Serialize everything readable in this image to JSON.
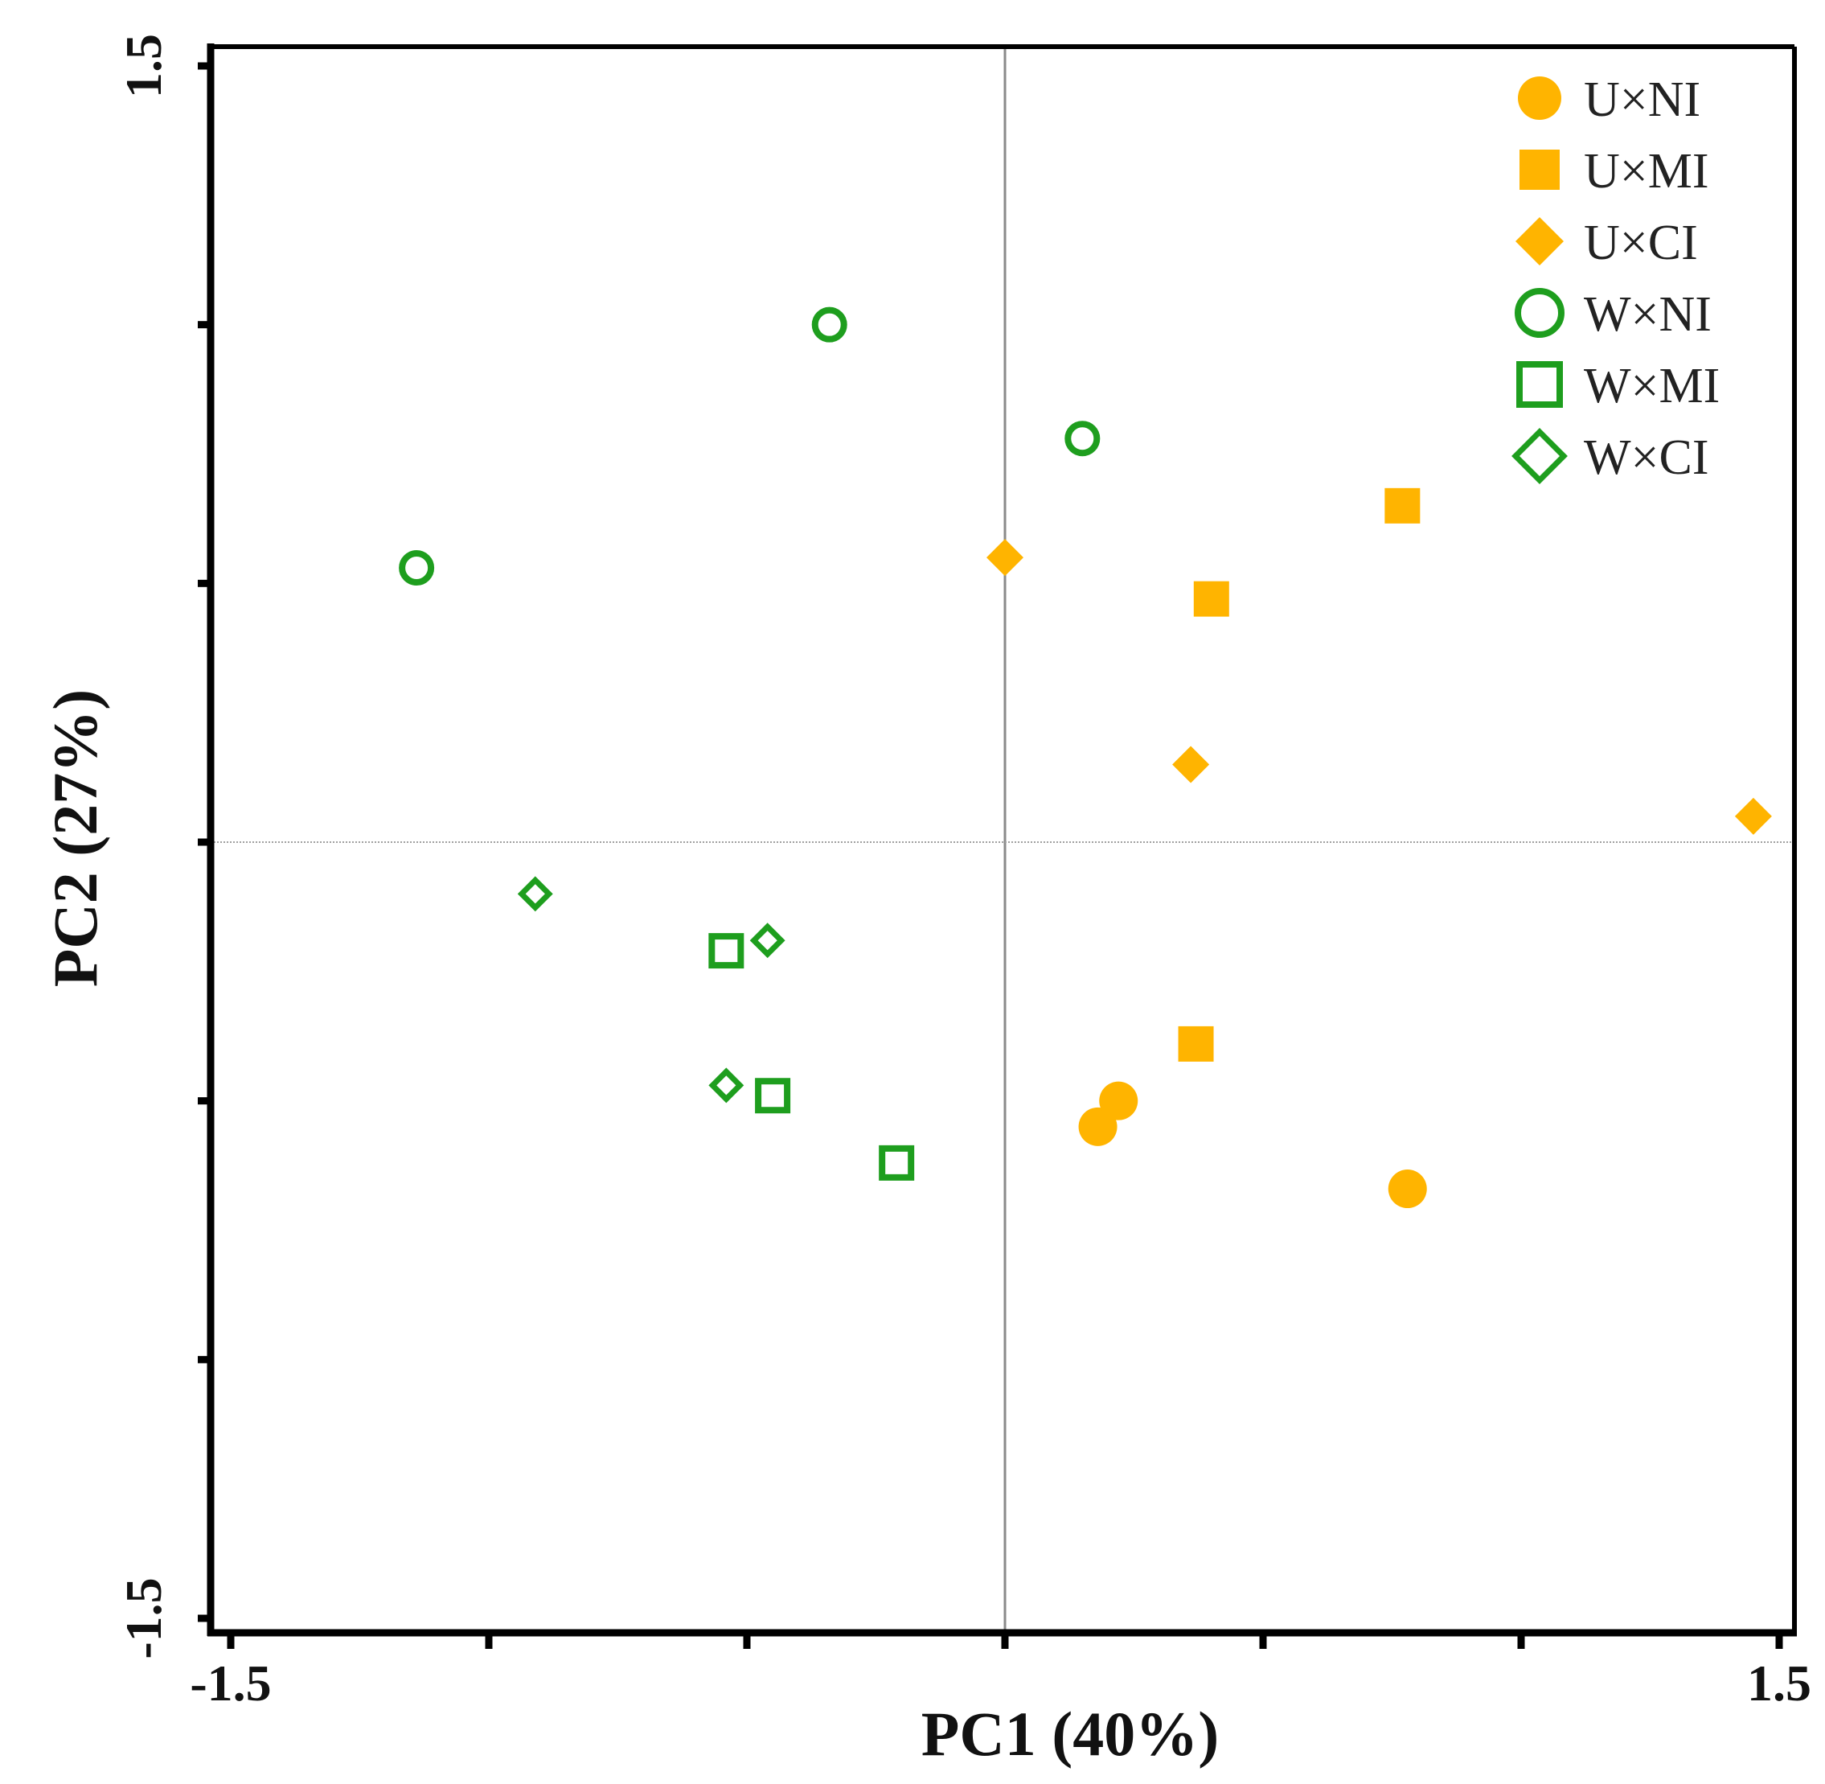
{
  "chart_data": {
    "type": "scatter",
    "title": "",
    "xlabel": "PC1 (40%)",
    "ylabel": "PC2 (27%)",
    "xlim": [
      -1.5,
      1.5
    ],
    "ylim": [
      -1.5,
      1.5
    ],
    "x_tick_labels": [
      {
        "value": -1.5,
        "label": "-1.5"
      },
      {
        "value": 1.5,
        "label": "1.5"
      }
    ],
    "y_tick_labels": [
      {
        "value": 1.5,
        "label": "1.5"
      },
      {
        "value": -1.5,
        "label": "-1.5"
      }
    ],
    "x_ticks": [
      -1.5,
      -1.0,
      -0.5,
      0,
      0.5,
      1.0,
      1.5
    ],
    "y_ticks": [
      1.5,
      1.0,
      0.5,
      0,
      -0.5,
      -1.0,
      -1.5
    ],
    "reference_lines": {
      "x": 0,
      "y": 0
    },
    "legend_position": "top-right",
    "series": [
      {
        "name": "U×NI",
        "marker": "circle",
        "filled": true,
        "color": "#FFB400",
        "points": [
          [
            0.18,
            -0.55
          ],
          [
            0.22,
            -0.5
          ],
          [
            0.78,
            -0.67
          ]
        ]
      },
      {
        "name": "U×MI",
        "marker": "square",
        "filled": true,
        "color": "#FFB400",
        "points": [
          [
            0.77,
            0.65
          ],
          [
            0.4,
            0.47
          ],
          [
            0.37,
            -0.39
          ]
        ]
      },
      {
        "name": "U×CI",
        "marker": "diamond",
        "filled": true,
        "color": "#FFB400",
        "points": [
          [
            0.0,
            0.55
          ],
          [
            0.36,
            0.15
          ],
          [
            1.45,
            0.05
          ]
        ]
      },
      {
        "name": "W×NI",
        "marker": "circle",
        "filled": false,
        "color": "#1E9E1E",
        "points": [
          [
            -0.34,
            1.0
          ],
          [
            0.15,
            0.78
          ],
          [
            -1.14,
            0.53
          ]
        ]
      },
      {
        "name": "W×MI",
        "marker": "square",
        "filled": false,
        "color": "#1E9E1E",
        "points": [
          [
            -0.54,
            -0.21
          ],
          [
            -0.45,
            -0.49
          ],
          [
            -0.21,
            -0.62
          ]
        ]
      },
      {
        "name": "W×CI",
        "marker": "diamond",
        "filled": false,
        "color": "#1E9E1E",
        "points": [
          [
            -0.91,
            -0.1
          ],
          [
            -0.46,
            -0.19
          ],
          [
            -0.54,
            -0.47
          ]
        ]
      }
    ]
  }
}
